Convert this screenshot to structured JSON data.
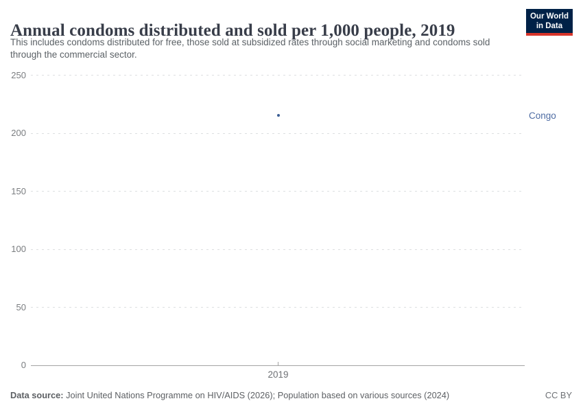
{
  "header": {
    "title": "Annual condoms distributed and sold per 1,000 people, 2019",
    "subtitle": "This includes condoms distributed for free, those sold at subsidized rates through social marketing and condoms sold through the commercial sector.",
    "logo": {
      "line1": "Our World",
      "line2": "in Data",
      "bg_color": "#002147",
      "bar_color": "#d8352a"
    }
  },
  "chart_data": {
    "type": "scatter",
    "title": "Annual condoms distributed and sold per 1,000 people, 2019",
    "x": [
      2019
    ],
    "xticks": [
      "2019"
    ],
    "yticks": [
      0,
      50,
      100,
      150,
      200,
      250
    ],
    "ylim": [
      0,
      250
    ],
    "grid": "horizontal-dashed",
    "legend_position": "right-entity-labels",
    "series": [
      {
        "name": "Congo",
        "values": [
          215
        ],
        "point_color": "#3b5e95",
        "label_color": "#4e6ca3"
      }
    ]
  },
  "footer": {
    "source_label": "Data source:",
    "source_text": " Joint United Nations Programme on HIV/AIDS (2026); Population based on various sources (2024)",
    "license": "CC BY"
  }
}
